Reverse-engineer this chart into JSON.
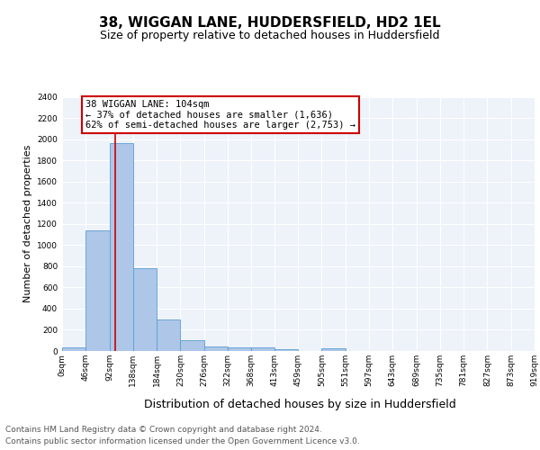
{
  "title1": "38, WIGGAN LANE, HUDDERSFIELD, HD2 1EL",
  "title2": "Size of property relative to detached houses in Huddersfield",
  "xlabel": "Distribution of detached houses by size in Huddersfield",
  "ylabel": "Number of detached properties",
  "bin_edges": [
    0,
    46,
    92,
    138,
    184,
    230,
    276,
    322,
    368,
    413,
    459,
    505,
    551,
    597,
    643,
    689,
    735,
    781,
    827,
    873,
    919
  ],
  "bar_heights": [
    30,
    1140,
    1960,
    780,
    300,
    100,
    45,
    35,
    30,
    15,
    0,
    25,
    0,
    0,
    0,
    0,
    0,
    0,
    0,
    0
  ],
  "bar_color": "#aec6e8",
  "bar_edgecolor": "#5a9fd4",
  "property_line_x": 104,
  "property_line_color": "#cc0000",
  "annotation_title": "38 WIGGAN LANE: 104sqm",
  "annotation_line1": "← 37% of detached houses are smaller (1,636)",
  "annotation_line2": "62% of semi-detached houses are larger (2,753) →",
  "annotation_box_color": "#cc0000",
  "ylim": [
    0,
    2400
  ],
  "yticks": [
    0,
    200,
    400,
    600,
    800,
    1000,
    1200,
    1400,
    1600,
    1800,
    2000,
    2200,
    2400
  ],
  "xtick_labels": [
    "0sqm",
    "46sqm",
    "92sqm",
    "138sqm",
    "184sqm",
    "230sqm",
    "276sqm",
    "322sqm",
    "368sqm",
    "413sqm",
    "459sqm",
    "505sqm",
    "551sqm",
    "597sqm",
    "643sqm",
    "689sqm",
    "735sqm",
    "781sqm",
    "827sqm",
    "873sqm",
    "919sqm"
  ],
  "background_color": "#eef2f9",
  "footer_line1": "Contains HM Land Registry data © Crown copyright and database right 2024.",
  "footer_line2": "Contains public sector information licensed under the Open Government Licence v3.0.",
  "title1_fontsize": 11,
  "title2_fontsize": 9,
  "ylabel_fontsize": 8,
  "xlabel_fontsize": 9,
  "tick_fontsize": 6.5,
  "footer_fontsize": 6.5,
  "ann_fontsize": 7.5
}
